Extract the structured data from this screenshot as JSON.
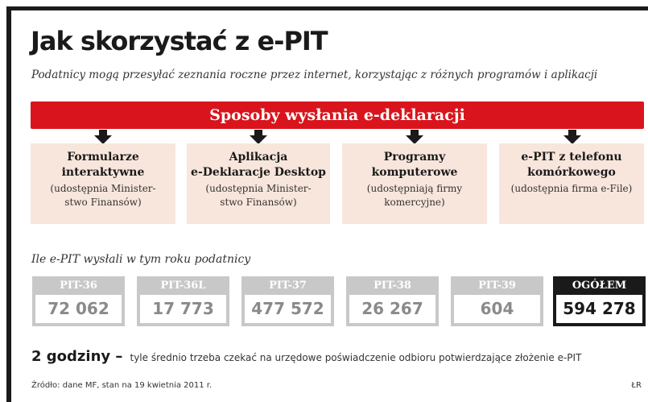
{
  "title": "Jak skorzystać z e-PIT",
  "subtitle": "Podatnicy mogą przesyłać zeznania roczne przez internet, korzystając z różnych programów i aplikacji",
  "banner": "Sposoby wysłania e-deklaracji",
  "methods": [
    {
      "title": "Formularze\ninteraktywne",
      "sub": "(udostępnia Minister-\nstwo Finansów)"
    },
    {
      "title": "Aplikacja\ne-Deklaracje Desktop",
      "sub": "(udostępnia Minister-\nstwo Finansów)"
    },
    {
      "title": "Programy\nkomputerowe",
      "sub": "(udostępniają firmy\nkomercyjne)"
    },
    {
      "title": "e-PIT z telefonu\nkomórkowego",
      "sub": "(udostępnia firma e-File)"
    }
  ],
  "stats_label": "Ile e-PIT wysłali w tym roku podatnicy",
  "stats": [
    {
      "label": "PIT-36",
      "value": "72 062"
    },
    {
      "label": "PIT-36L",
      "value": "17 773"
    },
    {
      "label": "PIT-37",
      "value": "477 572"
    },
    {
      "label": "PIT-38",
      "value": "26 267"
    },
    {
      "label": "PIT-39",
      "value": "604"
    },
    {
      "label": "OGÓŁEM",
      "value": "594 278"
    }
  ],
  "note": {
    "highlight": "2 godziny –",
    "text": "tyle średnio trzeba czekać na urzędowe poświadczenie odbioru potwierdzające złożenie e-PIT"
  },
  "source": "Źródło: dane MF, stan na 19 kwietnia 2011 r.",
  "credit": "ŁR",
  "colors": {
    "banner": "#d9141c",
    "box": "#f8e6dc",
    "stat_border": "#c8c8c8",
    "total": "#1a1a1a"
  }
}
